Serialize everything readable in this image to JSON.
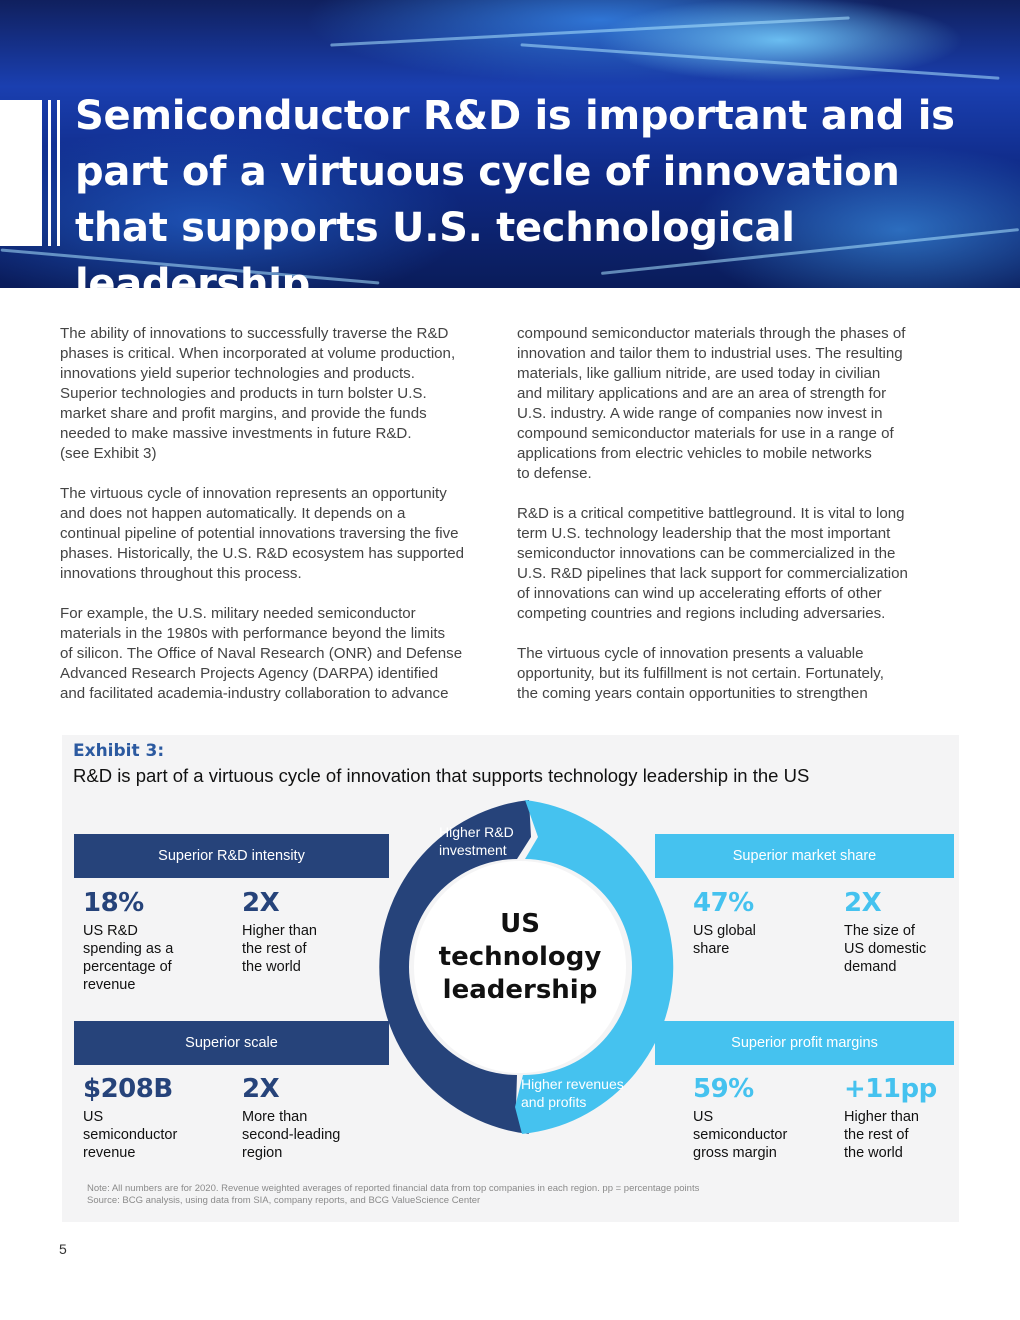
{
  "header": {
    "title": "Semiconductor R&D is important and is part of a virtuous cycle of innovation that supports U.S. technological leadership"
  },
  "body": {
    "left": [
      "The ability of innovations to successfully traverse the R&D\nphases is critical. When incorporated at volume production,\ninnovations yield superior technologies and products.\nSuperior technologies and products in turn bolster U.S.\nmarket share and profit margins, and provide the funds\nneeded to make massive investments in future R&D.\n(see Exhibit 3)",
      "The virtuous cycle of innovation represents an opportunity\nand does not happen automatically. It depends on a\ncontinual pipeline of potential innovations traversing the five\nphases. Historically, the U.S. R&D ecosystem has supported\ninnovations throughout this process.",
      "For example, the U.S. military needed semiconductor\nmaterials in the 1980s with performance beyond the limits\nof silicon. The Office of Naval Research (ONR) and Defense\nAdvanced Research Projects Agency (DARPA) identified\nand facilitated academia-industry collaboration to advance"
    ],
    "right": [
      "compound semiconductor materials through the phases of\ninnovation and tailor them to industrial uses. The resulting\nmaterials, like gallium nitride, are used today in civilian\nand military applications and are an area of strength for\nU.S. industry. A wide range of companies now invest in\ncompound semiconductor materials for use in a range of\napplications from electric vehicles to mobile networks\nto defense.",
      "R&D is a critical competitive battleground. It is vital to long\nterm U.S. technology leadership that the most important\nsemiconductor innovations can be commercialized in the\nU.S. R&D pipelines that lack support for commercialization\nof innovations can wind up accelerating efforts of other\ncompeting countries and regions including adversaries.",
      "The virtuous cycle of innovation presents a valuable\nopportunity, but its fulfillment is not certain. Fortunately,\nthe coming years contain opportunities to strengthen"
    ]
  },
  "exhibit": {
    "label": "Exhibit 3:",
    "title": "R&D is part of a virtuous cycle of innovation that supports technology leadership in the US",
    "center": "US\ntechnology\nleadership",
    "arcs": {
      "top": "Higher R&D\ninvestment",
      "bottom": "Higher revenues\nand profits"
    },
    "quadrants": {
      "rd_intensity": {
        "heading": "Superior R&D intensity",
        "stats": [
          {
            "value": "18%",
            "desc": "US R&D\nspending as a\npercentage of\nrevenue"
          },
          {
            "value": "2X",
            "desc": "Higher than\nthe rest of\nthe world"
          }
        ]
      },
      "market_share": {
        "heading": "Superior market share",
        "stats": [
          {
            "value": "47%",
            "desc": "US global\nshare"
          },
          {
            "value": "2X",
            "desc": "The size of\nUS domestic\ndemand"
          }
        ]
      },
      "scale": {
        "heading": "Superior scale",
        "stats": [
          {
            "value": "$208B",
            "desc": "US\nsemiconductor\nrevenue"
          },
          {
            "value": "2X",
            "desc": "More than\nsecond-leading\nregion"
          }
        ]
      },
      "profit": {
        "heading": "Superior profit margins",
        "stats": [
          {
            "value": "59%",
            "desc": "US\nsemiconductor\ngross margin"
          },
          {
            "value": "+11pp",
            "desc": "Higher than\nthe rest of\nthe world"
          }
        ]
      }
    },
    "note": "Note: All numbers are for 2020. Revenue weighted averages of reported financial data from top companies in each region. pp = percentage points",
    "source": "Source: BCG analysis, using data from SIA, company reports, and BCG ValueScience Center"
  },
  "footer": {
    "page_number": "5"
  },
  "colors": {
    "dark_blue": "#26437a",
    "light_blue": "#45c2ef",
    "exhibit_label": "#2c5aa0"
  }
}
